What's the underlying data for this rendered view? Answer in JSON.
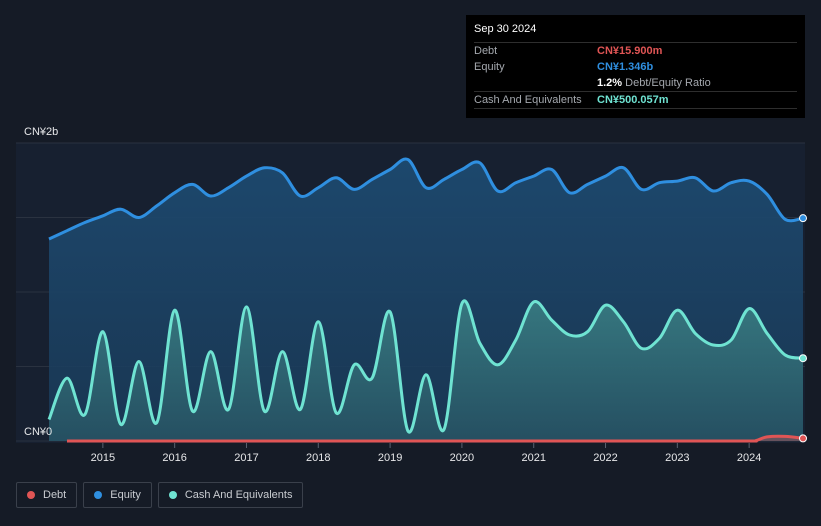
{
  "tooltip": {
    "date": "Sep 30 2024",
    "debt_label": "Debt",
    "debt_value": "CN¥15.900m",
    "equity_label": "Equity",
    "equity_value": "CN¥1.346b",
    "ratio_value": "1.2%",
    "ratio_label": "Debt/Equity Ratio",
    "cash_label": "Cash And Equivalents",
    "cash_value": "CN¥500.057m"
  },
  "legend": [
    {
      "label": "Debt",
      "color": "#e05555"
    },
    {
      "label": "Equity",
      "color": "#2f8fe0"
    },
    {
      "label": "Cash And Equivalents",
      "color": "#6fe3d2"
    }
  ],
  "colors": {
    "debt": "#e05555",
    "equity": "#2f8fe0",
    "cash": "#6fe3d2",
    "debt_value_text": "#e05555",
    "equity_value_text": "#2f8fe0",
    "cash_value_text": "#6fe3d2"
  },
  "chart_data": {
    "type": "area",
    "title": "",
    "y_axis_top_label": "CN¥2b",
    "y_axis_bottom_label": "CN¥0",
    "ylim": [
      0,
      1.8
    ],
    "xlim": [
      2014.25,
      2024.75
    ],
    "x_ticks": [
      "2015",
      "2016",
      "2017",
      "2018",
      "2019",
      "2020",
      "2021",
      "2022",
      "2023",
      "2024"
    ],
    "units": "CN¥ billions",
    "series": [
      {
        "name": "Equity",
        "points": [
          [
            2014.25,
            1.22
          ],
          [
            2014.5,
            1.27
          ],
          [
            2014.75,
            1.32
          ],
          [
            2015.0,
            1.36
          ],
          [
            2015.25,
            1.4
          ],
          [
            2015.5,
            1.35
          ],
          [
            2015.75,
            1.42
          ],
          [
            2016.0,
            1.5
          ],
          [
            2016.25,
            1.55
          ],
          [
            2016.5,
            1.48
          ],
          [
            2016.75,
            1.53
          ],
          [
            2017.0,
            1.6
          ],
          [
            2017.25,
            1.65
          ],
          [
            2017.5,
            1.62
          ],
          [
            2017.75,
            1.48
          ],
          [
            2018.0,
            1.53
          ],
          [
            2018.25,
            1.59
          ],
          [
            2018.5,
            1.52
          ],
          [
            2018.75,
            1.58
          ],
          [
            2019.0,
            1.64
          ],
          [
            2019.25,
            1.7
          ],
          [
            2019.5,
            1.53
          ],
          [
            2019.75,
            1.58
          ],
          [
            2020.0,
            1.64
          ],
          [
            2020.25,
            1.68
          ],
          [
            2020.5,
            1.51
          ],
          [
            2020.75,
            1.56
          ],
          [
            2021.0,
            1.6
          ],
          [
            2021.25,
            1.64
          ],
          [
            2021.5,
            1.5
          ],
          [
            2021.75,
            1.55
          ],
          [
            2022.0,
            1.6
          ],
          [
            2022.25,
            1.65
          ],
          [
            2022.5,
            1.52
          ],
          [
            2022.75,
            1.56
          ],
          [
            2023.0,
            1.57
          ],
          [
            2023.25,
            1.59
          ],
          [
            2023.5,
            1.51
          ],
          [
            2023.75,
            1.56
          ],
          [
            2024.0,
            1.57
          ],
          [
            2024.25,
            1.49
          ],
          [
            2024.5,
            1.34
          ],
          [
            2024.75,
            1.346
          ]
        ]
      },
      {
        "name": "Cash And Equivalents",
        "points": [
          [
            2014.25,
            0.13
          ],
          [
            2014.5,
            0.38
          ],
          [
            2014.75,
            0.16
          ],
          [
            2015.0,
            0.66
          ],
          [
            2015.25,
            0.1
          ],
          [
            2015.5,
            0.48
          ],
          [
            2015.75,
            0.11
          ],
          [
            2016.0,
            0.79
          ],
          [
            2016.25,
            0.18
          ],
          [
            2016.5,
            0.54
          ],
          [
            2016.75,
            0.19
          ],
          [
            2017.0,
            0.81
          ],
          [
            2017.25,
            0.18
          ],
          [
            2017.5,
            0.54
          ],
          [
            2017.75,
            0.19
          ],
          [
            2018.0,
            0.72
          ],
          [
            2018.25,
            0.17
          ],
          [
            2018.5,
            0.46
          ],
          [
            2018.75,
            0.38
          ],
          [
            2019.0,
            0.78
          ],
          [
            2019.25,
            0.06
          ],
          [
            2019.5,
            0.4
          ],
          [
            2019.75,
            0.07
          ],
          [
            2020.0,
            0.83
          ],
          [
            2020.25,
            0.59
          ],
          [
            2020.5,
            0.46
          ],
          [
            2020.75,
            0.61
          ],
          [
            2021.0,
            0.84
          ],
          [
            2021.25,
            0.73
          ],
          [
            2021.5,
            0.64
          ],
          [
            2021.75,
            0.66
          ],
          [
            2022.0,
            0.82
          ],
          [
            2022.25,
            0.72
          ],
          [
            2022.5,
            0.56
          ],
          [
            2022.75,
            0.62
          ],
          [
            2023.0,
            0.79
          ],
          [
            2023.25,
            0.65
          ],
          [
            2023.5,
            0.58
          ],
          [
            2023.75,
            0.61
          ],
          [
            2024.0,
            0.8
          ],
          [
            2024.25,
            0.65
          ],
          [
            2024.5,
            0.52
          ],
          [
            2024.75,
            0.5
          ]
        ]
      },
      {
        "name": "Debt",
        "points": [
          [
            2014.5,
            0.0
          ],
          [
            2015.0,
            0.0
          ],
          [
            2016.0,
            0.0
          ],
          [
            2017.0,
            0.0
          ],
          [
            2018.0,
            0.0
          ],
          [
            2019.0,
            0.0
          ],
          [
            2020.0,
            0.0
          ],
          [
            2021.0,
            0.0
          ],
          [
            2022.0,
            0.0
          ],
          [
            2023.0,
            0.0
          ],
          [
            2024.0,
            0.0
          ],
          [
            2024.1,
            0.003
          ],
          [
            2024.25,
            0.025
          ],
          [
            2024.5,
            0.028
          ],
          [
            2024.75,
            0.0159
          ]
        ]
      }
    ]
  }
}
